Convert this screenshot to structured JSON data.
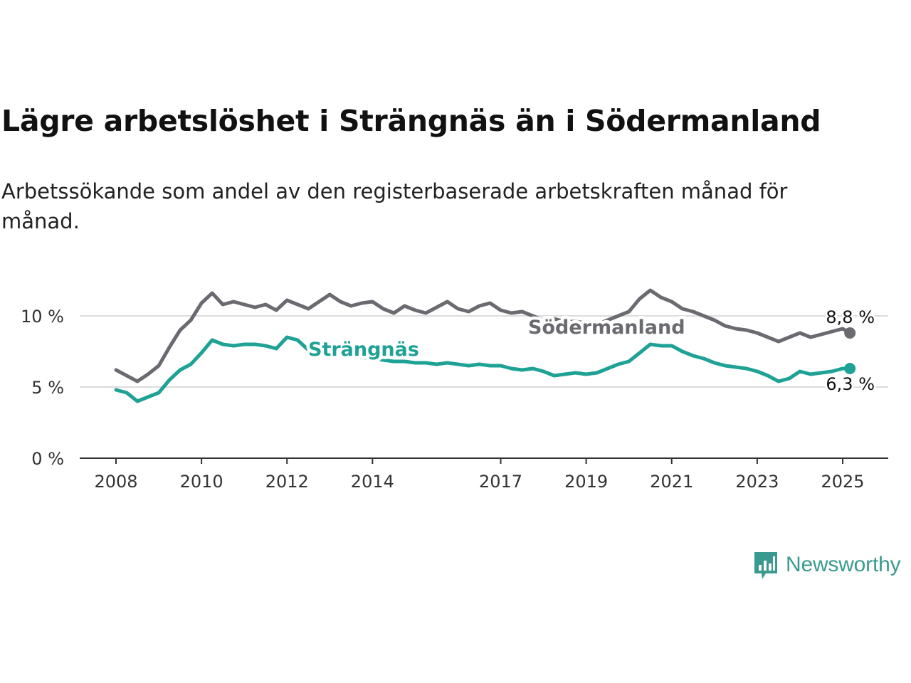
{
  "title": "Lägre arbetslöshet i Strängnäs än i Södermanland",
  "subtitle": "Arbetssökande som andel av den registerbaserade arbetskraften månad för månad.",
  "logo": {
    "text": "Newsworthy",
    "icon": "bar-chart-speech-bubble-icon",
    "color": "#3a9a8f"
  },
  "chart_data": {
    "type": "line",
    "xlim": [
      2008,
      2025.2
    ],
    "ylim": [
      0,
      12
    ],
    "x_ticks": [
      2008,
      2010,
      2012,
      2014,
      2017,
      2019,
      2021,
      2023,
      2025
    ],
    "x_tick_labels": [
      "2008",
      "2010",
      "2012",
      "2014",
      "2017",
      "2019",
      "2021",
      "2023",
      "2025"
    ],
    "y_ticks": [
      0,
      5,
      10
    ],
    "y_tick_labels": [
      "0 %",
      "5 %",
      "10 %"
    ],
    "grid": "horizontal",
    "series": [
      {
        "name": "Södermanland",
        "color": "#6b6a70",
        "end_label": "8,8 %",
        "points": [
          [
            2008.0,
            6.2
          ],
          [
            2008.25,
            5.8
          ],
          [
            2008.5,
            5.4
          ],
          [
            2008.75,
            5.9
          ],
          [
            2009.0,
            6.5
          ],
          [
            2009.25,
            7.8
          ],
          [
            2009.5,
            9.0
          ],
          [
            2009.75,
            9.7
          ],
          [
            2010.0,
            10.9
          ],
          [
            2010.25,
            11.6
          ],
          [
            2010.5,
            10.8
          ],
          [
            2010.75,
            11.0
          ],
          [
            2011.0,
            10.8
          ],
          [
            2011.25,
            10.6
          ],
          [
            2011.5,
            10.8
          ],
          [
            2011.75,
            10.4
          ],
          [
            2012.0,
            11.1
          ],
          [
            2012.25,
            10.8
          ],
          [
            2012.5,
            10.5
          ],
          [
            2012.75,
            11.0
          ],
          [
            2013.0,
            11.5
          ],
          [
            2013.25,
            11.0
          ],
          [
            2013.5,
            10.7
          ],
          [
            2013.75,
            10.9
          ],
          [
            2014.0,
            11.0
          ],
          [
            2014.25,
            10.5
          ],
          [
            2014.5,
            10.2
          ],
          [
            2014.75,
            10.7
          ],
          [
            2015.0,
            10.4
          ],
          [
            2015.25,
            10.2
          ],
          [
            2015.5,
            10.6
          ],
          [
            2015.75,
            11.0
          ],
          [
            2016.0,
            10.5
          ],
          [
            2016.25,
            10.3
          ],
          [
            2016.5,
            10.7
          ],
          [
            2016.75,
            10.9
          ],
          [
            2017.0,
            10.4
          ],
          [
            2017.25,
            10.2
          ],
          [
            2017.5,
            10.3
          ],
          [
            2017.75,
            10.0
          ],
          [
            2018.0,
            9.7
          ],
          [
            2018.25,
            9.8
          ],
          [
            2018.5,
            9.6
          ],
          [
            2018.75,
            9.6
          ],
          [
            2019.0,
            9.5
          ],
          [
            2019.25,
            9.4
          ],
          [
            2019.5,
            9.7
          ],
          [
            2019.75,
            10.0
          ],
          [
            2020.0,
            10.3
          ],
          [
            2020.25,
            11.2
          ],
          [
            2020.5,
            11.8
          ],
          [
            2020.75,
            11.3
          ],
          [
            2021.0,
            11.0
          ],
          [
            2021.25,
            10.5
          ],
          [
            2021.5,
            10.3
          ],
          [
            2021.75,
            10.0
          ],
          [
            2022.0,
            9.7
          ],
          [
            2022.25,
            9.3
          ],
          [
            2022.5,
            9.1
          ],
          [
            2022.75,
            9.0
          ],
          [
            2023.0,
            8.8
          ],
          [
            2023.25,
            8.5
          ],
          [
            2023.5,
            8.2
          ],
          [
            2023.75,
            8.5
          ],
          [
            2024.0,
            8.8
          ],
          [
            2024.25,
            8.5
          ],
          [
            2024.5,
            8.7
          ],
          [
            2024.75,
            8.9
          ],
          [
            2025.0,
            9.1
          ],
          [
            2025.17,
            8.8
          ]
        ]
      },
      {
        "name": "Strängnäs",
        "color": "#1ea295",
        "end_label": "6,3 %",
        "points": [
          [
            2008.0,
            4.8
          ],
          [
            2008.25,
            4.6
          ],
          [
            2008.5,
            4.0
          ],
          [
            2008.75,
            4.3
          ],
          [
            2009.0,
            4.6
          ],
          [
            2009.25,
            5.5
          ],
          [
            2009.5,
            6.2
          ],
          [
            2009.75,
            6.6
          ],
          [
            2010.0,
            7.4
          ],
          [
            2010.25,
            8.3
          ],
          [
            2010.5,
            8.0
          ],
          [
            2010.75,
            7.9
          ],
          [
            2011.0,
            8.0
          ],
          [
            2011.25,
            8.0
          ],
          [
            2011.5,
            7.9
          ],
          [
            2011.75,
            7.7
          ],
          [
            2012.0,
            8.5
          ],
          [
            2012.25,
            8.3
          ],
          [
            2012.5,
            7.6
          ],
          [
            2012.75,
            7.5
          ],
          [
            2013.0,
            7.4
          ],
          [
            2013.25,
            7.3
          ],
          [
            2013.5,
            7.2
          ],
          [
            2013.75,
            7.1
          ],
          [
            2014.0,
            7.0
          ],
          [
            2014.25,
            6.9
          ],
          [
            2014.5,
            6.8
          ],
          [
            2014.75,
            6.8
          ],
          [
            2015.0,
            6.7
          ],
          [
            2015.25,
            6.7
          ],
          [
            2015.5,
            6.6
          ],
          [
            2015.75,
            6.7
          ],
          [
            2016.0,
            6.6
          ],
          [
            2016.25,
            6.5
          ],
          [
            2016.5,
            6.6
          ],
          [
            2016.75,
            6.5
          ],
          [
            2017.0,
            6.5
          ],
          [
            2017.25,
            6.3
          ],
          [
            2017.5,
            6.2
          ],
          [
            2017.75,
            6.3
          ],
          [
            2018.0,
            6.1
          ],
          [
            2018.25,
            5.8
          ],
          [
            2018.5,
            5.9
          ],
          [
            2018.75,
            6.0
          ],
          [
            2019.0,
            5.9
          ],
          [
            2019.25,
            6.0
          ],
          [
            2019.5,
            6.3
          ],
          [
            2019.75,
            6.6
          ],
          [
            2020.0,
            6.8
          ],
          [
            2020.25,
            7.4
          ],
          [
            2020.5,
            8.0
          ],
          [
            2020.75,
            7.9
          ],
          [
            2021.0,
            7.9
          ],
          [
            2021.25,
            7.5
          ],
          [
            2021.5,
            7.2
          ],
          [
            2021.75,
            7.0
          ],
          [
            2022.0,
            6.7
          ],
          [
            2022.25,
            6.5
          ],
          [
            2022.5,
            6.4
          ],
          [
            2022.75,
            6.3
          ],
          [
            2023.0,
            6.1
          ],
          [
            2023.25,
            5.8
          ],
          [
            2023.5,
            5.4
          ],
          [
            2023.75,
            5.6
          ],
          [
            2024.0,
            6.1
          ],
          [
            2024.25,
            5.9
          ],
          [
            2024.5,
            6.0
          ],
          [
            2024.75,
            6.1
          ],
          [
            2025.0,
            6.3
          ],
          [
            2025.17,
            6.3
          ]
        ]
      }
    ]
  }
}
